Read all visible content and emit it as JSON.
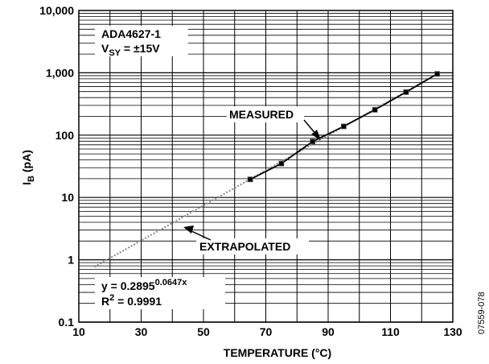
{
  "chart_data": {
    "type": "scatter",
    "title": "",
    "xlabel": "TEMPERATURE (°C)",
    "ylabel_main": "I",
    "ylabel_sub": "B",
    "ylabel_unit": " (pA)",
    "xlim": [
      10,
      130
    ],
    "ylim": [
      0.1,
      10000
    ],
    "yscale": "log",
    "grid": true,
    "x_ticks": [
      10,
      30,
      50,
      70,
      90,
      110,
      130
    ],
    "x_tick_labels": [
      "10",
      "30",
      "50",
      "70",
      "90",
      "110",
      "130"
    ],
    "y_ticks": [
      0.1,
      1,
      10,
      100,
      1000,
      10000
    ],
    "y_tick_labels": [
      "0.1",
      "1",
      "10",
      "100",
      "1,000",
      "10,000"
    ],
    "series": [
      {
        "name": "MEASURED",
        "style": "solid-markers",
        "color": "#000000",
        "x": [
          65,
          75,
          85,
          95,
          105,
          115,
          125
        ],
        "y": [
          19.5,
          35,
          79,
          138,
          255,
          490,
          960
        ]
      },
      {
        "name": "EXTRAPOLATED",
        "style": "dotted",
        "color": "#888888",
        "x": [
          15,
          125
        ],
        "y": [
          0.77,
          960
        ]
      }
    ],
    "annotations": {
      "part": "ADA4627-1",
      "supply_main": "V",
      "supply_sub": "SY",
      "supply_rest": " = ±15V",
      "measured": "MEASURED",
      "extrapolated": "EXTRAPOLATED",
      "eq_base": "y = 0.2895",
      "eq_exp": "0.0647x",
      "r2_base": "R",
      "r2_sup": "2",
      "r2_rest": " = 0.9991"
    },
    "figure_id": "07559-078"
  }
}
